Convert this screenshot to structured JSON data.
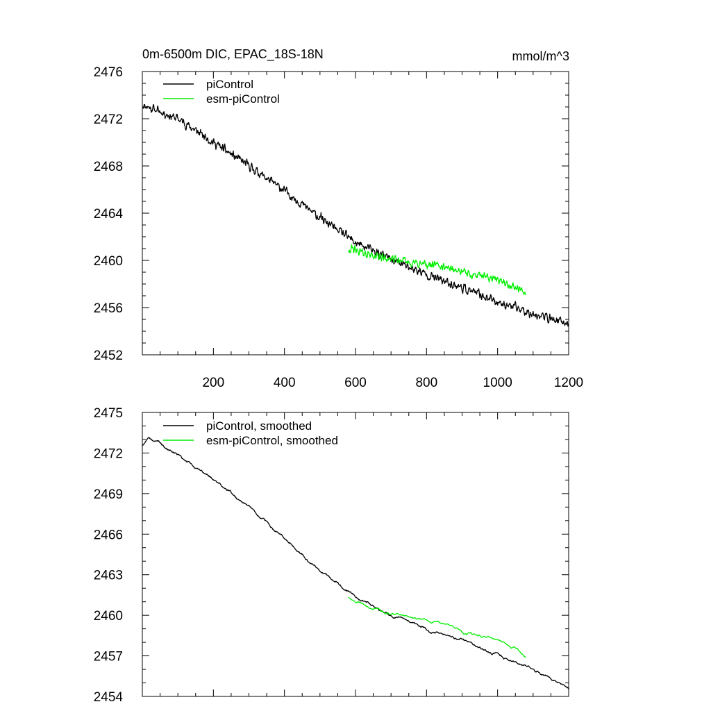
{
  "chart_data": [
    {
      "type": "line",
      "title": "0m-6500m DIC, EPAC_18S-18N",
      "units": "mmol/m^3",
      "xlim": [
        0,
        1200
      ],
      "ylim": [
        2452,
        2476
      ],
      "x_ticks": [
        200,
        400,
        600,
        800,
        1000,
        1200
      ],
      "x_tick_labels": [
        "200",
        "400",
        "600",
        "800",
        "1000",
        "1200"
      ],
      "y_ticks": [
        2452,
        2456,
        2460,
        2464,
        2468,
        2472,
        2476
      ],
      "y_tick_labels": [
        "2452",
        "2456",
        "2460",
        "2464",
        "2468",
        "2472",
        "2476"
      ],
      "legend_position": "top-left",
      "series": [
        {
          "name": "piControl",
          "color": "#000000",
          "x_range": [
            1,
            1200
          ],
          "trend_x": [
            1,
            100,
            200,
            300,
            400,
            500,
            600,
            700,
            800,
            900,
            1000,
            1100,
            1200
          ],
          "trend_y": [
            2473.2,
            2472.0,
            2470.0,
            2468.0,
            2465.9,
            2463.6,
            2461.5,
            2460.1,
            2458.8,
            2457.7,
            2456.5,
            2455.5,
            2454.6
          ],
          "noise_amplitude": 0.55
        },
        {
          "name": "esm-piControl",
          "color": "#00ee00",
          "x_range": [
            580,
            1080
          ],
          "trend_x": [
            580,
            650,
            700,
            800,
            850,
            900,
            1000,
            1080
          ],
          "trend_y": [
            2461.0,
            2460.4,
            2460.1,
            2459.6,
            2459.5,
            2459.0,
            2458.4,
            2457.2
          ],
          "noise_amplitude": 0.5
        }
      ]
    },
    {
      "type": "line",
      "xlim": [
        0,
        1200
      ],
      "ylim": [
        2454,
        2475
      ],
      "x_ticks": [
        200,
        400,
        600,
        800,
        1000,
        1200
      ],
      "y_ticks": [
        2454,
        2457,
        2460,
        2463,
        2466,
        2469,
        2472,
        2475
      ],
      "y_tick_labels": [
        "2454",
        "2457",
        "2460",
        "2463",
        "2466",
        "2469",
        "2472",
        "2475"
      ],
      "legend_position": "top-left",
      "series": [
        {
          "name": "piControl, smoothed",
          "color": "#000000",
          "x_range": [
            1,
            1200
          ],
          "trend_x": [
            1,
            20,
            100,
            200,
            300,
            400,
            500,
            600,
            700,
            800,
            900,
            1000,
            1100,
            1200
          ],
          "trend_y": [
            2472.8,
            2473.3,
            2471.8,
            2470.0,
            2468.0,
            2465.6,
            2463.3,
            2461.4,
            2460.0,
            2459.0,
            2458.1,
            2457.1,
            2456.0,
            2454.6
          ],
          "noise_amplitude": 0.22
        },
        {
          "name": "esm-piControl, smoothed",
          "color": "#00ee00",
          "x_range": [
            580,
            1080
          ],
          "trend_x": [
            580,
            650,
            700,
            800,
            850,
            900,
            1000,
            1050,
            1080
          ],
          "trend_y": [
            2461.2,
            2460.5,
            2460.1,
            2459.7,
            2459.4,
            2458.8,
            2458.2,
            2457.5,
            2456.8
          ],
          "noise_amplitude": 0.18
        }
      ]
    }
  ]
}
